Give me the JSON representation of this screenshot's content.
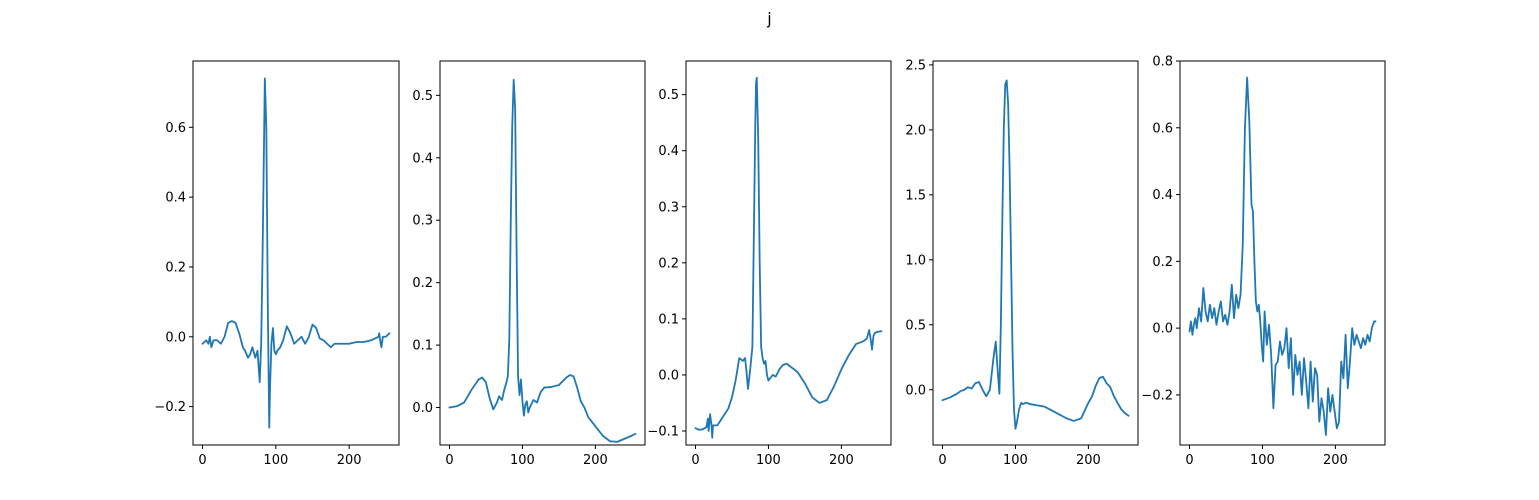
{
  "figure": {
    "title": "j"
  },
  "chart_data": [
    {
      "type": "line",
      "xlim": [
        -13,
        268
      ],
      "ylim": [
        -0.31,
        0.79
      ],
      "xticks": [
        0,
        100,
        200
      ],
      "xtick_labels": [
        "0",
        "100",
        "200"
      ],
      "yticks": [
        -0.2,
        0.0,
        0.2,
        0.4,
        0.6
      ],
      "ytick_labels": [
        "−0.2",
        "0.0",
        "0.2",
        "0.4",
        "0.6"
      ],
      "grid": false,
      "series": [
        {
          "color": "#1f77b4",
          "x": [
            0,
            5,
            8,
            10,
            12,
            15,
            18,
            20,
            25,
            30,
            35,
            40,
            45,
            50,
            55,
            58,
            62,
            65,
            68,
            72,
            75,
            78,
            80,
            82,
            85,
            87,
            89,
            90,
            91,
            92,
            94,
            96,
            98,
            100,
            102,
            104,
            106,
            110,
            115,
            120,
            125,
            130,
            135,
            140,
            145,
            150,
            155,
            160,
            165,
            170,
            175,
            180,
            190,
            200,
            210,
            220,
            230,
            240,
            241,
            243,
            244,
            246,
            250,
            255
          ],
          "y": [
            -0.02,
            -0.01,
            -0.02,
            0.0,
            -0.03,
            -0.01,
            -0.01,
            -0.01,
            -0.02,
            0.0,
            0.04,
            0.045,
            0.04,
            0.01,
            -0.03,
            -0.04,
            -0.06,
            -0.05,
            -0.03,
            -0.06,
            -0.04,
            -0.13,
            -0.02,
            0.25,
            0.74,
            0.6,
            0.1,
            -0.08,
            -0.26,
            -0.15,
            -0.02,
            0.025,
            -0.04,
            -0.05,
            -0.04,
            -0.035,
            -0.03,
            -0.01,
            0.03,
            0.01,
            -0.02,
            -0.01,
            0.0,
            -0.02,
            0.0,
            0.035,
            0.025,
            -0.005,
            -0.01,
            -0.02,
            -0.03,
            -0.02,
            -0.02,
            -0.02,
            -0.015,
            -0.015,
            -0.01,
            0.0,
            0.01,
            -0.02,
            -0.03,
            0.0,
            0.0,
            0.01
          ]
        }
      ]
    },
    {
      "type": "line",
      "xlim": [
        -13,
        268
      ],
      "ylim": [
        -0.06,
        0.555
      ],
      "xticks": [
        0,
        100,
        200
      ],
      "xtick_labels": [
        "0",
        "100",
        "200"
      ],
      "yticks": [
        0.0,
        0.1,
        0.2,
        0.3,
        0.4,
        0.5
      ],
      "ytick_labels": [
        "0.0",
        "0.1",
        "0.2",
        "0.3",
        "0.4",
        "0.5"
      ],
      "grid": false,
      "series": [
        {
          "color": "#1f77b4",
          "x": [
            0,
            10,
            20,
            30,
            40,
            45,
            50,
            55,
            60,
            65,
            68,
            70,
            72,
            75,
            78,
            80,
            82,
            84,
            86,
            88,
            90,
            92,
            94,
            96,
            98,
            100,
            102,
            104,
            106,
            108,
            110,
            115,
            120,
            125,
            130,
            140,
            150,
            160,
            165,
            170,
            175,
            180,
            185,
            190,
            200,
            210,
            220,
            230,
            240,
            250,
            255
          ],
          "y": [
            0.0,
            0.002,
            0.008,
            0.028,
            0.045,
            0.048,
            0.04,
            0.015,
            -0.003,
            0.008,
            0.018,
            0.015,
            0.012,
            0.028,
            0.04,
            0.05,
            0.11,
            0.3,
            0.45,
            0.525,
            0.48,
            0.25,
            0.05,
            0.02,
            0.045,
            0.01,
            -0.013,
            0.005,
            0.01,
            -0.008,
            0.0,
            0.012,
            0.008,
            0.025,
            0.032,
            0.033,
            0.036,
            0.048,
            0.052,
            0.05,
            0.032,
            0.01,
            0.0,
            -0.015,
            -0.03,
            -0.045,
            -0.054,
            -0.055,
            -0.05,
            -0.045,
            -0.042
          ]
        }
      ]
    },
    {
      "type": "line",
      "xlim": [
        -13,
        268
      ],
      "ylim": [
        -0.125,
        0.56
      ],
      "xticks": [
        0,
        100,
        200
      ],
      "xtick_labels": [
        "0",
        "100",
        "200"
      ],
      "yticks": [
        -0.1,
        0.0,
        0.1,
        0.2,
        0.3,
        0.4,
        0.5
      ],
      "ytick_labels": [
        "−0.1",
        "0.0",
        "0.1",
        "0.2",
        "0.3",
        "0.4",
        "0.5"
      ],
      "grid": false,
      "series": [
        {
          "color": "#1f77b4",
          "x": [
            0,
            5,
            10,
            15,
            17,
            18,
            19,
            20,
            22,
            23,
            24,
            25,
            30,
            35,
            40,
            45,
            50,
            55,
            60,
            65,
            68,
            70,
            72,
            75,
            78,
            80,
            82,
            83,
            84,
            86,
            88,
            90,
            92,
            94,
            96,
            98,
            100,
            103,
            106,
            110,
            115,
            120,
            125,
            130,
            135,
            140,
            145,
            150,
            160,
            170,
            180,
            190,
            200,
            210,
            220,
            230,
            235,
            238,
            240,
            242,
            244,
            246,
            250,
            255
          ],
          "y": [
            -0.095,
            -0.098,
            -0.097,
            -0.093,
            -0.078,
            -0.1,
            -0.085,
            -0.07,
            -0.09,
            -0.112,
            -0.09,
            -0.09,
            -0.09,
            -0.08,
            -0.07,
            -0.06,
            -0.04,
            -0.01,
            0.03,
            0.025,
            0.03,
            0.005,
            -0.025,
            0.01,
            0.05,
            0.25,
            0.45,
            0.52,
            0.53,
            0.42,
            0.2,
            0.05,
            0.03,
            0.02,
            0.025,
            0.0,
            -0.01,
            -0.005,
            0.0,
            -0.003,
            0.01,
            0.018,
            0.02,
            0.015,
            0.01,
            0.005,
            -0.005,
            -0.015,
            -0.04,
            -0.05,
            -0.045,
            -0.02,
            0.01,
            0.035,
            0.055,
            0.06,
            0.065,
            0.08,
            0.065,
            0.045,
            0.07,
            0.075,
            0.077,
            0.078
          ]
        }
      ]
    },
    {
      "type": "line",
      "xlim": [
        -13,
        268
      ],
      "ylim": [
        -0.425,
        2.53
      ],
      "xticks": [
        0,
        100,
        200
      ],
      "xtick_labels": [
        "0",
        "100",
        "200"
      ],
      "yticks": [
        0.0,
        0.5,
        1.0,
        1.5,
        2.0,
        2.5
      ],
      "ytick_labels": [
        "0.0",
        "0.5",
        "1.0",
        "1.5",
        "2.0",
        "2.5"
      ],
      "grid": false,
      "series": [
        {
          "color": "#1f77b4",
          "x": [
            0,
            10,
            20,
            25,
            30,
            35,
            40,
            45,
            50,
            55,
            60,
            65,
            70,
            73,
            75,
            78,
            80,
            82,
            84,
            86,
            88,
            90,
            92,
            94,
            96,
            98,
            100,
            102,
            105,
            108,
            110,
            115,
            120,
            130,
            140,
            150,
            160,
            170,
            180,
            190,
            200,
            205,
            210,
            215,
            220,
            225,
            230,
            235,
            240,
            245,
            250,
            255
          ],
          "y": [
            -0.08,
            -0.06,
            -0.03,
            -0.01,
            0.0,
            0.02,
            0.01,
            0.05,
            0.06,
            0.0,
            -0.05,
            0.0,
            0.25,
            0.37,
            0.2,
            -0.03,
            0.5,
            1.3,
            2.0,
            2.35,
            2.38,
            2.2,
            1.7,
            1.0,
            0.3,
            -0.15,
            -0.3,
            -0.25,
            -0.15,
            -0.1,
            -0.11,
            -0.1,
            -0.11,
            -0.12,
            -0.13,
            -0.16,
            -0.19,
            -0.22,
            -0.24,
            -0.22,
            -0.1,
            -0.05,
            0.03,
            0.09,
            0.1,
            0.05,
            0.02,
            -0.05,
            -0.1,
            -0.15,
            -0.18,
            -0.2
          ]
        }
      ]
    },
    {
      "type": "line",
      "xlim": [
        -13,
        268
      ],
      "ylim": [
        -0.35,
        0.8
      ],
      "xticks": [
        0,
        100,
        200
      ],
      "xtick_labels": [
        "0",
        "100",
        "200"
      ],
      "yticks": [
        -0.2,
        0.0,
        0.2,
        0.4,
        0.6,
        0.8
      ],
      "ytick_labels": [
        "−0.2",
        "0.0",
        "0.2",
        "0.4",
        "0.6",
        "0.8"
      ],
      "grid": false,
      "series": [
        {
          "color": "#1f77b4",
          "x": [
            0,
            2,
            4,
            6,
            8,
            10,
            13,
            16,
            19,
            22,
            25,
            28,
            31,
            34,
            37,
            40,
            43,
            46,
            49,
            52,
            55,
            58,
            61,
            64,
            67,
            70,
            73,
            76,
            79,
            82,
            85,
            87,
            89,
            91,
            93,
            95,
            97,
            99,
            101,
            103,
            106,
            109,
            112,
            115,
            118,
            121,
            124,
            127,
            130,
            133,
            136,
            139,
            142,
            145,
            148,
            151,
            154,
            157,
            160,
            163,
            166,
            169,
            172,
            175,
            178,
            181,
            184,
            187,
            190,
            193,
            196,
            199,
            202,
            205,
            208,
            211,
            214,
            217,
            220,
            223,
            226,
            229,
            232,
            235,
            238,
            241,
            244,
            247,
            250,
            253,
            255
          ],
          "y": [
            -0.01,
            0.02,
            -0.02,
            0.01,
            0.03,
            0.0,
            0.06,
            0.02,
            0.12,
            0.05,
            0.02,
            0.07,
            0.03,
            0.06,
            0.01,
            0.05,
            0.08,
            0.02,
            0.04,
            0.01,
            0.05,
            0.13,
            0.03,
            0.1,
            0.06,
            0.1,
            0.25,
            0.6,
            0.75,
            0.62,
            0.37,
            0.35,
            0.2,
            0.08,
            0.05,
            0.07,
            0.02,
            -0.05,
            -0.1,
            0.05,
            -0.05,
            0.01,
            -0.08,
            -0.24,
            -0.11,
            -0.1,
            -0.04,
            -0.08,
            -0.06,
            0.0,
            -0.12,
            -0.03,
            -0.2,
            -0.08,
            -0.14,
            -0.1,
            -0.2,
            -0.09,
            -0.16,
            -0.24,
            -0.1,
            -0.22,
            -0.12,
            -0.14,
            -0.28,
            -0.21,
            -0.25,
            -0.32,
            -0.18,
            -0.25,
            -0.2,
            -0.25,
            -0.3,
            -0.28,
            -0.1,
            -0.15,
            -0.02,
            -0.18,
            -0.1,
            0.0,
            -0.05,
            -0.02,
            -0.04,
            -0.06,
            -0.03,
            -0.05,
            -0.02,
            -0.04,
            0.0,
            0.02,
            0.02
          ]
        }
      ]
    }
  ]
}
